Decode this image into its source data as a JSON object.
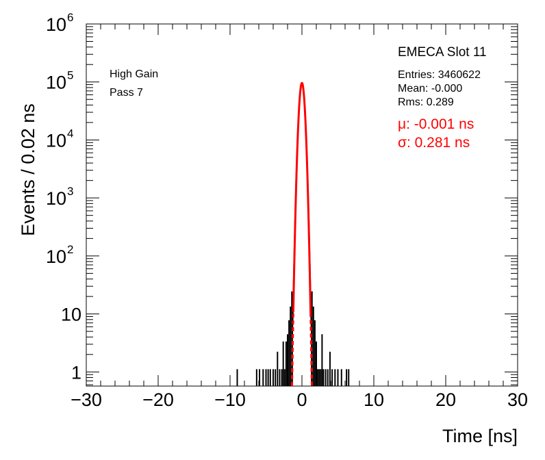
{
  "chart_data": {
    "type": "histogram",
    "xlabel": "Time [ns]",
    "ylabel": "Events / 0.02 ns",
    "xlim": [
      -30,
      30
    ],
    "ylim": [
      0.5,
      1000000
    ],
    "y_log": true,
    "grid": false,
    "x_ticks": [
      -30,
      -20,
      -10,
      0,
      10,
      20,
      30
    ],
    "x_tick_labels": [
      "−30",
      "−20",
      "−10",
      "0",
      "10",
      "20",
      "30"
    ],
    "y_tick_labels": [
      {
        "value": 1,
        "base": "1",
        "exp": ""
      },
      {
        "value": 10,
        "base": "10",
        "exp": ""
      },
      {
        "value": 100,
        "base": "10",
        "exp": "2"
      },
      {
        "value": 1000,
        "base": "10",
        "exp": "3"
      },
      {
        "value": 10000,
        "base": "10",
        "exp": "4"
      },
      {
        "value": 100000,
        "base": "10",
        "exp": "5"
      },
      {
        "value": 1000000,
        "base": "10",
        "exp": "6"
      }
    ],
    "series": [
      {
        "style": "black-histogram",
        "core_mean": 0.0,
        "core_sigma": 0.289,
        "core_peak": 96000,
        "tail_bins": [
          {
            "x": -9.0,
            "y": 1
          },
          {
            "x": -6.3,
            "y": 1
          },
          {
            "x": -5.9,
            "y": 1
          },
          {
            "x": -5.4,
            "y": 1
          },
          {
            "x": -5.0,
            "y": 1
          },
          {
            "x": -4.7,
            "y": 1
          },
          {
            "x": -4.4,
            "y": 1
          },
          {
            "x": -4.0,
            "y": 1
          },
          {
            "x": -3.7,
            "y": 1
          },
          {
            "x": -3.4,
            "y": 2
          },
          {
            "x": -3.1,
            "y": 1
          },
          {
            "x": -2.8,
            "y": 1
          },
          {
            "x": -2.6,
            "y": 3
          },
          {
            "x": -2.4,
            "y": 1
          },
          {
            "x": -2.2,
            "y": 3
          },
          {
            "x": -2.0,
            "y": 4
          },
          {
            "x": -1.8,
            "y": 7
          },
          {
            "x": -1.6,
            "y": 12
          },
          {
            "x": -1.4,
            "y": 22
          },
          {
            "x": 1.4,
            "y": 22
          },
          {
            "x": 1.6,
            "y": 12
          },
          {
            "x": 1.8,
            "y": 7
          },
          {
            "x": 2.0,
            "y": 3
          },
          {
            "x": 2.2,
            "y": 1
          },
          {
            "x": 2.4,
            "y": 1
          },
          {
            "x": 2.6,
            "y": 1
          },
          {
            "x": 2.8,
            "y": 4
          },
          {
            "x": 3.0,
            "y": 1
          },
          {
            "x": 3.3,
            "y": 1
          },
          {
            "x": 3.6,
            "y": 1
          },
          {
            "x": 3.9,
            "y": 2
          },
          {
            "x": 4.2,
            "y": 1
          },
          {
            "x": 4.6,
            "y": 1
          },
          {
            "x": 5.0,
            "y": 1
          },
          {
            "x": 5.5,
            "y": 1
          },
          {
            "x": 6.2,
            "y": 1
          },
          {
            "x": 6.5,
            "y": 1
          }
        ]
      },
      {
        "style": "red-gaussian-fit",
        "mean": -0.001,
        "sigma": 0.281,
        "amplitude": 96000
      }
    ],
    "annotations": {
      "left": [
        "High Gain",
        "Pass 7"
      ],
      "title": "EMECA Slot 11",
      "entries": "Entries: 3460622",
      "mean": "Mean: -0.000",
      "rms": "Rms: 0.289",
      "fit_mu": "μ: -0.001 ns",
      "fit_sigma": "σ: 0.281 ns"
    },
    "colors": {
      "histogram": "#000000",
      "fit": "#ff0000",
      "frame": "#000000"
    }
  }
}
